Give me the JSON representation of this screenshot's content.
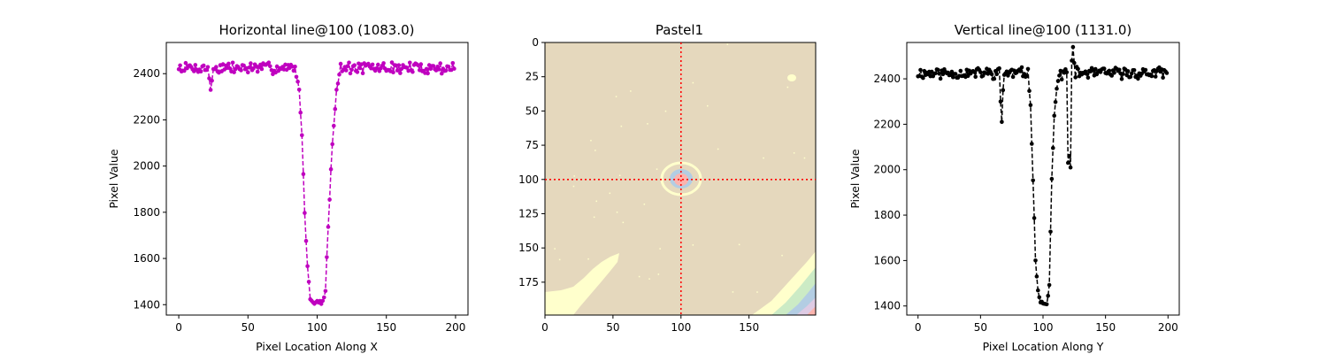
{
  "chart_data": [
    {
      "type": "line",
      "title": "Horizontal line@100 (1083.0)",
      "xlabel": "Pixel Location Along X",
      "ylabel": "Pixel Value",
      "xlim": [
        -9,
        209
      ],
      "ylim": [
        1355,
        2535
      ],
      "xticks": [
        "0",
        "50",
        "100",
        "150",
        "200"
      ],
      "yticks": [
        "1400",
        "1600",
        "1800",
        "2000",
        "2200",
        "2400"
      ],
      "line_style": "dashed-with-dots",
      "color": "#bf00bf",
      "profile": {
        "base": 2425,
        "noise": 22,
        "seed": 7,
        "dip": [
          [
            84,
            2425
          ],
          [
            87,
            2330
          ],
          [
            89,
            2130
          ],
          [
            91,
            1800
          ],
          [
            93,
            1560
          ],
          [
            95,
            1430
          ],
          [
            97,
            1410
          ],
          [
            104,
            1410
          ],
          [
            106,
            1460
          ],
          [
            108,
            1740
          ],
          [
            111,
            2100
          ],
          [
            114,
            2330
          ],
          [
            117,
            2425
          ]
        ],
        "glitches": [
          [
            22,
            2380
          ],
          [
            23,
            2330
          ],
          [
            24,
            2370
          ]
        ]
      }
    },
    {
      "type": "heatmap",
      "title": "Pastel1",
      "colormap": "Pastel1",
      "yticks": [
        "0",
        "25",
        "50",
        "75",
        "100",
        "125",
        "150",
        "175"
      ],
      "xticks": [
        "0",
        "50",
        "100",
        "150"
      ],
      "xlim": [
        0,
        199
      ],
      "ylim": [
        199,
        0
      ],
      "crosshair": {
        "x": 100,
        "y": 100,
        "color": "#ff0000"
      },
      "colors": {
        "background": "#e5d8bd",
        "bright": "#ffffcc",
        "center_blue": "#b3cde3",
        "center_pink": "#fbb4ae",
        "green": "#ccebc5",
        "lilac": "#decbe4"
      }
    },
    {
      "type": "line",
      "title": "Vertical line@100 (1131.0)",
      "xlabel": "Pixel Location Along Y",
      "ylabel": "Pixel Value",
      "xlim": [
        -9,
        209
      ],
      "ylim": [
        1360,
        2560
      ],
      "xticks": [
        "0",
        "50",
        "100",
        "150",
        "200"
      ],
      "yticks": [
        "1400",
        "1600",
        "1800",
        "2000",
        "2200",
        "2400"
      ],
      "line_style": "dashed-with-dots",
      "color": "#000000",
      "profile": {
        "base": 2425,
        "noise": 22,
        "seed": 11,
        "dip": [
          [
            88,
            2425
          ],
          [
            90,
            2280
          ],
          [
            92,
            1960
          ],
          [
            94,
            1600
          ],
          [
            96,
            1470
          ],
          [
            98,
            1420
          ],
          [
            103,
            1410
          ],
          [
            105,
            1490
          ],
          [
            107,
            1960
          ],
          [
            109,
            2240
          ],
          [
            111,
            2350
          ],
          [
            113,
            2425
          ]
        ],
        "glitches": [
          [
            66,
            2300
          ],
          [
            67,
            2210
          ],
          [
            68,
            2350
          ],
          [
            120,
            2030
          ],
          [
            121,
            2060
          ],
          [
            122,
            2010
          ],
          [
            123,
            2480
          ],
          [
            124,
            2540
          ],
          [
            125,
            2470
          ]
        ]
      }
    }
  ]
}
